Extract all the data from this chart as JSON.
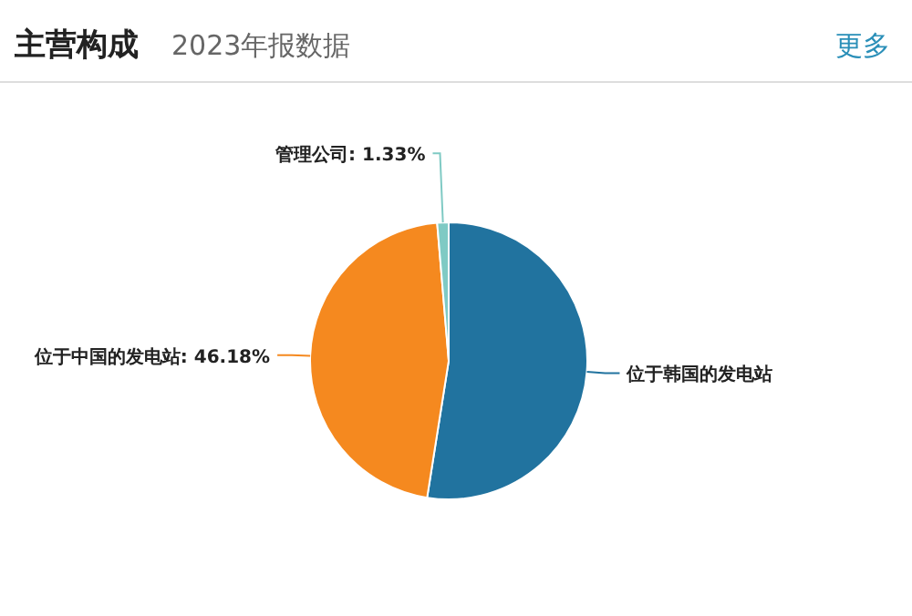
{
  "chart_data": {
    "type": "pie",
    "title": "主营构成",
    "subtitle": "2023年报数据",
    "annotations": [
      "更多"
    ],
    "categories": [
      "位于韩国的发电站",
      "位于中国的发电站",
      "管理公司"
    ],
    "values": [
      52.49,
      46.18,
      1.33
    ],
    "colors": [
      "#21739f",
      "#f5891f",
      "#7fcac4"
    ],
    "value_labels": [
      null,
      ": 46.18%",
      ": 1.33%"
    ]
  }
}
